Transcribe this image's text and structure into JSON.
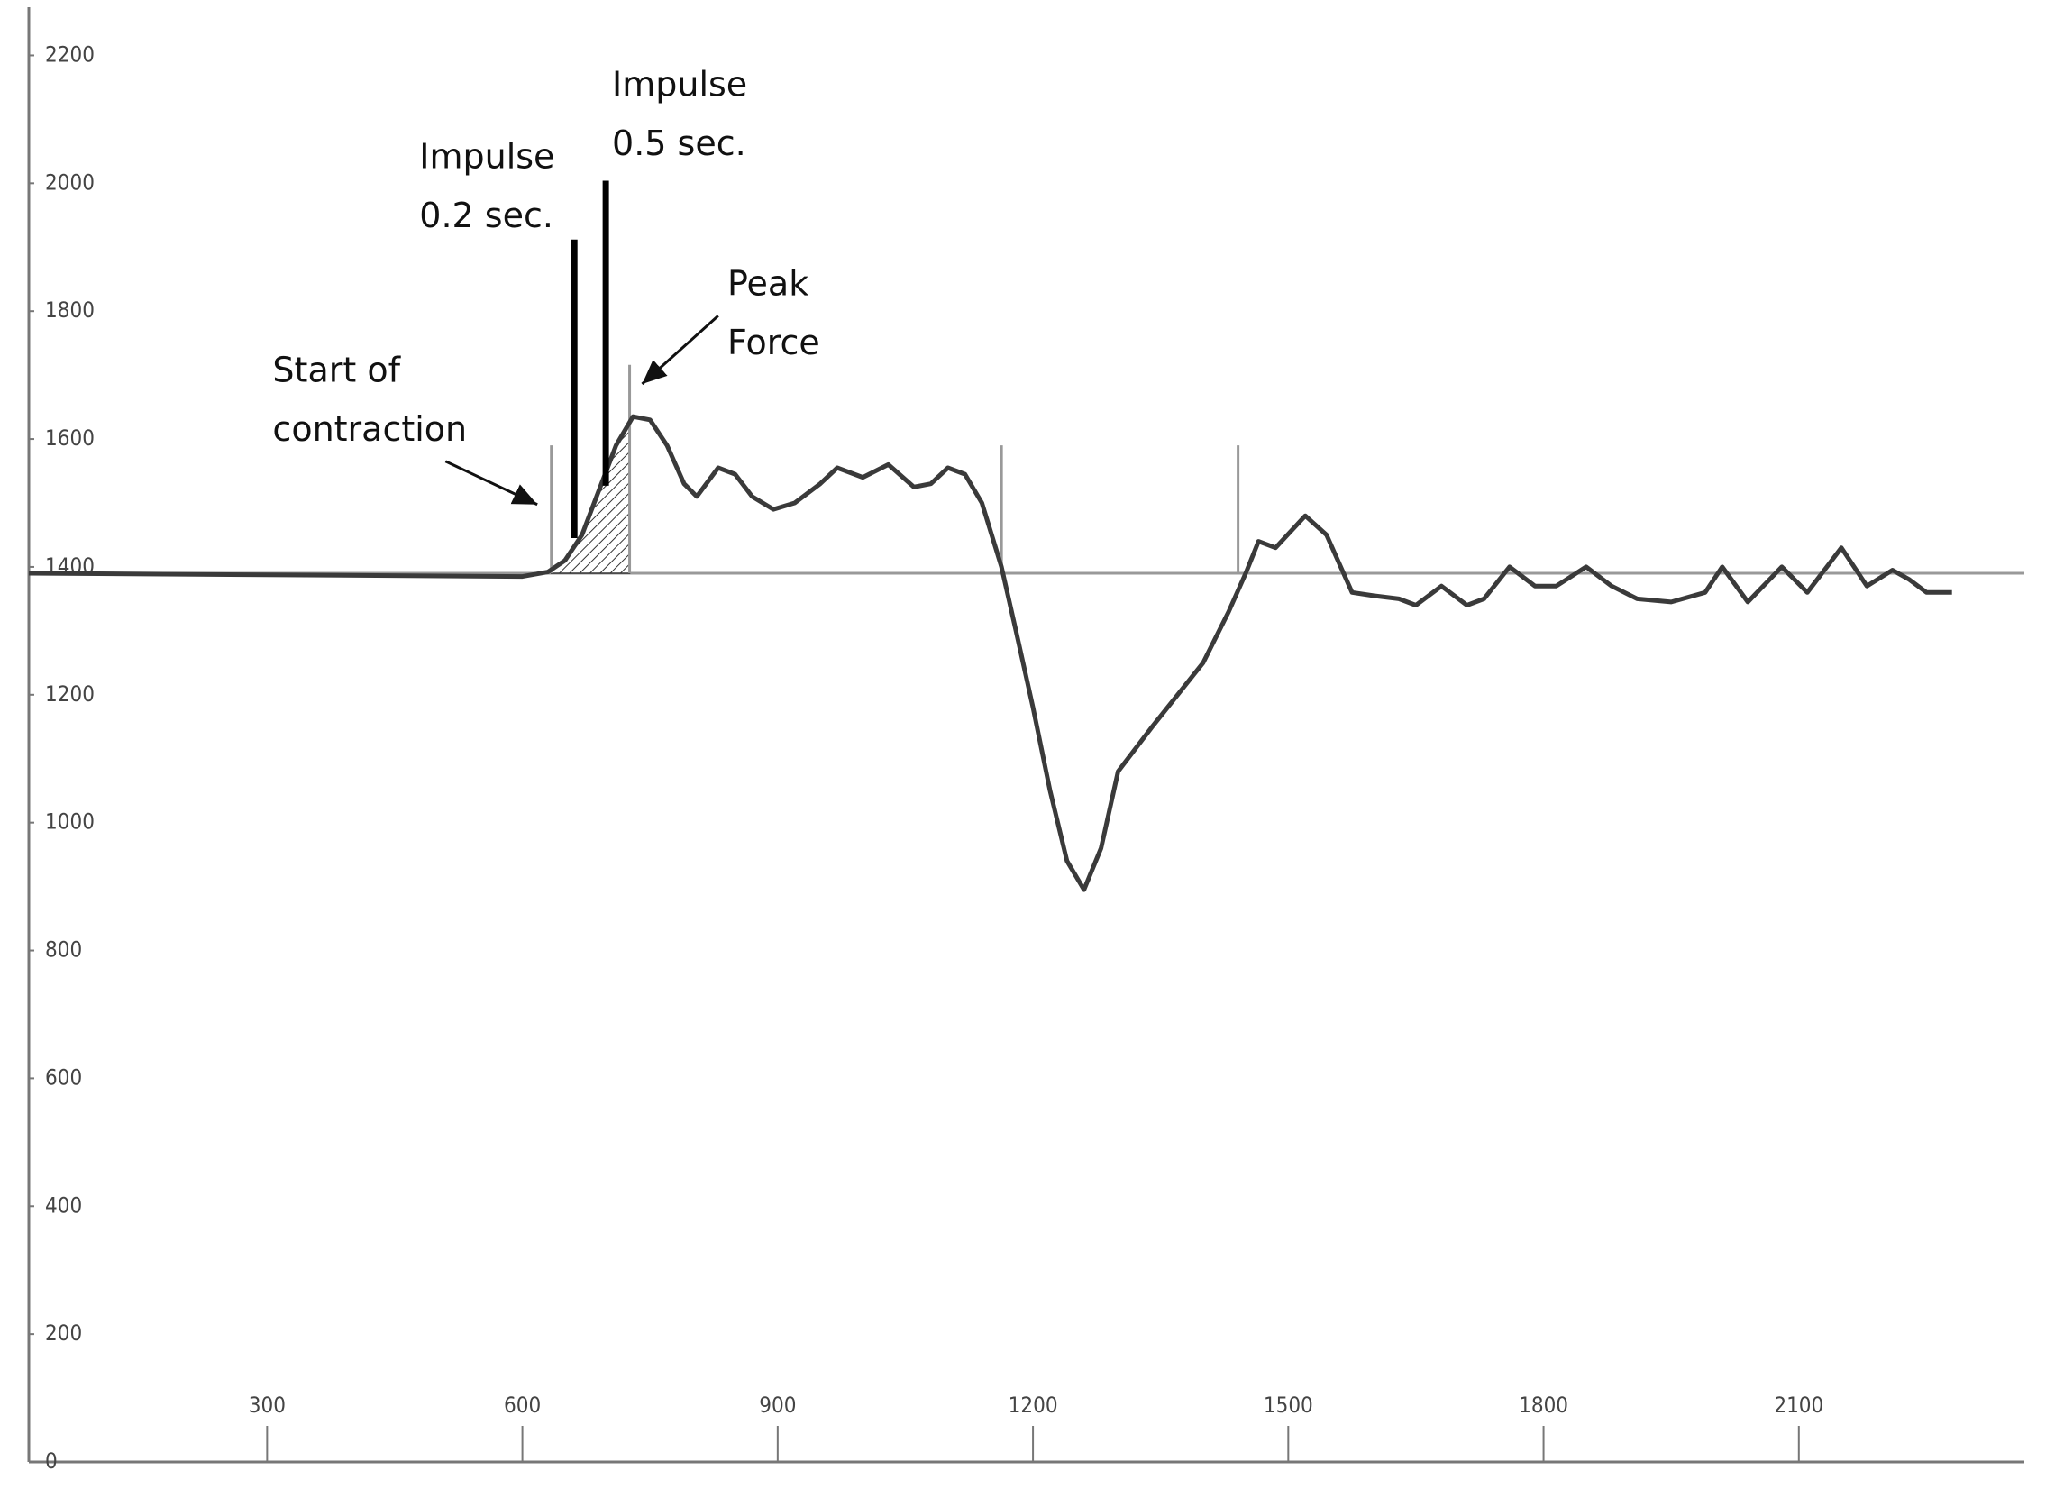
{
  "chart_data": {
    "type": "line",
    "color": "#3a3a3a",
    "x": [
      20,
      600,
      630,
      650,
      670,
      690,
      710,
      730,
      750,
      770,
      790,
      805,
      830,
      850,
      870,
      895,
      920,
      950,
      970,
      1000,
      1030,
      1060,
      1080,
      1100,
      1120,
      1140,
      1163,
      1180,
      1200,
      1220,
      1240,
      1260,
      1280,
      1300,
      1340,
      1370,
      1400,
      1430,
      1450,
      1465,
      1485,
      1520,
      1545,
      1575,
      1600,
      1630,
      1650,
      1680,
      1710,
      1730,
      1760,
      1790,
      1815,
      1850,
      1880,
      1910,
      1950,
      1990,
      2010,
      2040,
      2080,
      2110,
      2150,
      2180,
      2210,
      2230,
      2250,
      2280
    ],
    "values": [
      1390,
      1385,
      1392,
      1410,
      1450,
      1520,
      1590,
      1635,
      1630,
      1590,
      1530,
      1510,
      1555,
      1545,
      1510,
      1490,
      1500,
      1530,
      1555,
      1540,
      1560,
      1525,
      1530,
      1555,
      1545,
      1500,
      1400,
      1300,
      1180,
      1050,
      940,
      895,
      960,
      1080,
      1150,
      1200,
      1250,
      1330,
      1390,
      1440,
      1430,
      1480,
      1450,
      1360,
      1355,
      1350,
      1340,
      1370,
      1340,
      1350,
      1400,
      1370,
      1370,
      1400,
      1370,
      1350,
      1345,
      1360,
      1400,
      1345,
      1400,
      1360,
      1430,
      1370,
      1395,
      1380,
      1360,
      1360
    ],
    "xlim": [
      20,
      2365
    ],
    "ylim": [
      0,
      2250
    ],
    "xticks": [
      300,
      600,
      900,
      1200,
      1500,
      1800,
      2100
    ],
    "yticks": [
      0,
      200,
      400,
      600,
      800,
      1000,
      1200,
      1400,
      1600,
      1800,
      2000,
      2200
    ],
    "reference_y": 1390,
    "markers": [
      {
        "x": 634,
        "top": 1590
      },
      {
        "x": 726,
        "top": 1716
      },
      {
        "x": 1163,
        "top": 1590
      },
      {
        "x": 1441,
        "top": 1590
      }
    ],
    "impulse_bars": [
      {
        "x": 661,
        "low": 1445,
        "high": 1912
      },
      {
        "x": 698,
        "low": 1527,
        "high": 2004
      }
    ],
    "annotations": [
      {
        "lines": [
          "Start of",
          "contraction"
        ]
      },
      {
        "lines": [
          "Impulse",
          "0.2 sec."
        ]
      },
      {
        "lines": [
          "Impulse",
          "0.5 sec."
        ]
      },
      {
        "lines": [
          "Peak",
          "Force"
        ]
      }
    ]
  }
}
